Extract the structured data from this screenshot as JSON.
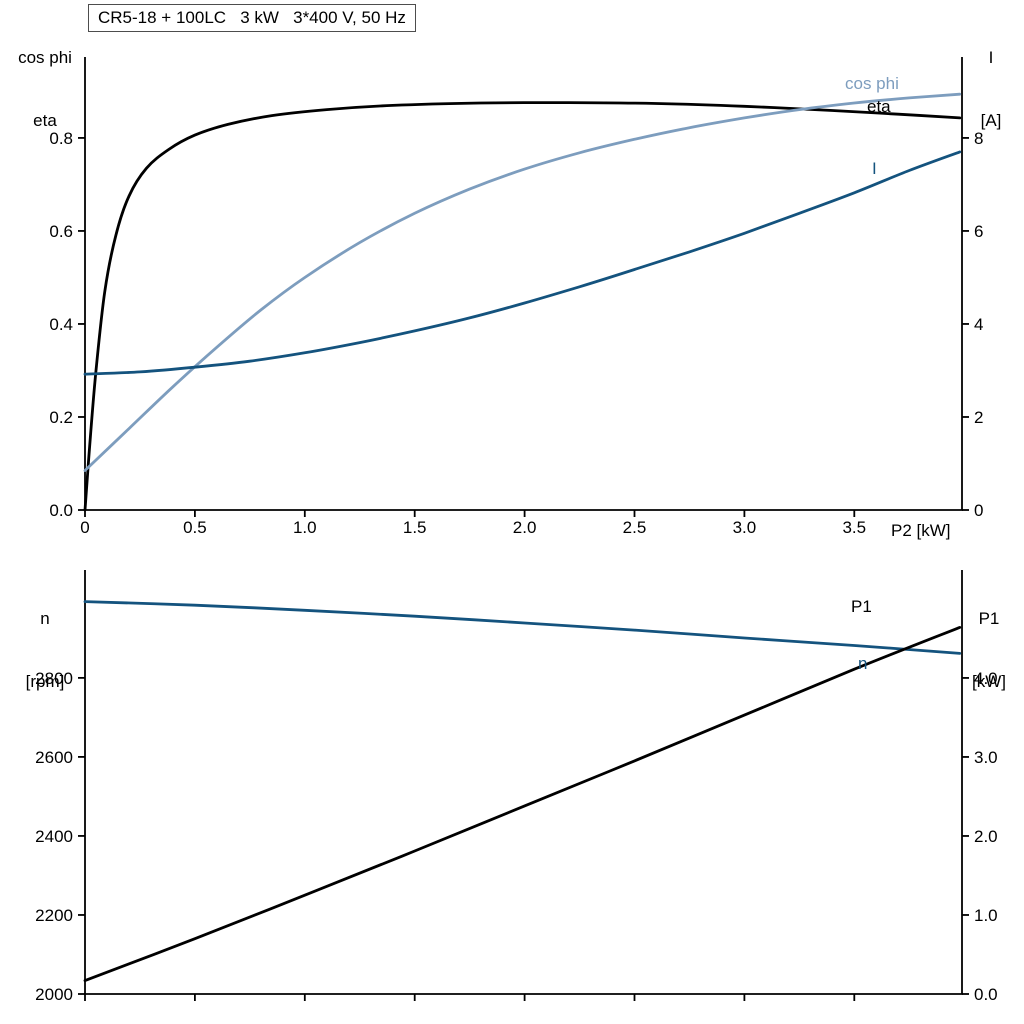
{
  "colors": {
    "black": "#000000",
    "light_blue": "#7d9dbe",
    "dark_blue": "#14537e",
    "background": "#ffffff"
  },
  "chart_data": [
    {
      "type": "line",
      "title": "CR5-18 + 100LC   3 kW   3*400 V, 50 Hz",
      "xlabel": "P2 [kW]",
      "xlim": [
        0,
        3.99
      ],
      "x_ticks": [
        0,
        0.5,
        1.0,
        1.5,
        2.0,
        2.5,
        3.0,
        3.5
      ],
      "x_tick_labels": [
        "0",
        "0.5",
        "1.0",
        "1.5",
        "2.0",
        "2.5",
        "3.0",
        "3.5"
      ],
      "grid": false,
      "left_axis": {
        "label_lines": [
          "cos phi",
          "eta"
        ],
        "lim": [
          0,
          0.974
        ],
        "ticks": [
          0.0,
          0.2,
          0.4,
          0.6,
          0.8
        ],
        "tick_labels": [
          "0.0",
          "0.2",
          "0.4",
          "0.6",
          "0.8"
        ]
      },
      "right_axis": {
        "label_lines": [
          "I",
          "[A]"
        ],
        "lim": [
          0,
          9.74
        ],
        "ticks": [
          0,
          2,
          4,
          6,
          8
        ],
        "tick_labels": [
          "0",
          "2",
          "4",
          "6",
          "8"
        ]
      },
      "series": [
        {
          "name": "eta",
          "label": "eta",
          "axis": "left",
          "color_key": "black",
          "x": [
            0,
            0.02,
            0.05,
            0.09,
            0.14,
            0.2,
            0.28,
            0.38,
            0.5,
            0.65,
            0.85,
            1.1,
            1.4,
            1.8,
            2.2,
            2.6,
            3.0,
            3.4,
            3.7,
            3.98
          ],
          "values": [
            0,
            0.13,
            0.3,
            0.47,
            0.59,
            0.675,
            0.735,
            0.775,
            0.806,
            0.829,
            0.848,
            0.861,
            0.87,
            0.875,
            0.876,
            0.874,
            0.868,
            0.859,
            0.851,
            0.843
          ]
        },
        {
          "name": "cos-phi",
          "label": "cos phi",
          "axis": "left",
          "color_key": "light_blue",
          "x": [
            0,
            0.2,
            0.4,
            0.6,
            0.8,
            1.0,
            1.25,
            1.5,
            1.75,
            2.0,
            2.25,
            2.5,
            2.75,
            3.0,
            3.25,
            3.5,
            3.75,
            3.98
          ],
          "values": [
            0.085,
            0.175,
            0.265,
            0.35,
            0.43,
            0.5,
            0.575,
            0.638,
            0.69,
            0.733,
            0.768,
            0.797,
            0.822,
            0.843,
            0.861,
            0.875,
            0.886,
            0.894
          ]
        },
        {
          "name": "current",
          "label": "I",
          "axis": "right",
          "color_key": "dark_blue",
          "x": [
            0,
            0.25,
            0.5,
            0.75,
            1.0,
            1.25,
            1.5,
            1.75,
            2.0,
            2.25,
            2.5,
            2.75,
            3.0,
            3.25,
            3.5,
            3.75,
            3.98
          ],
          "values": [
            2.92,
            2.97,
            3.07,
            3.2,
            3.38,
            3.6,
            3.85,
            4.13,
            4.45,
            4.8,
            5.17,
            5.55,
            5.95,
            6.38,
            6.82,
            7.3,
            7.7
          ]
        }
      ]
    },
    {
      "type": "line",
      "title": "",
      "xlabel": "",
      "xlim": [
        0,
        3.99
      ],
      "x_ticks": [
        0,
        0.5,
        1.0,
        1.5,
        2.0,
        2.5,
        3.0,
        3.5
      ],
      "x_tick_labels": [],
      "grid": false,
      "left_axis": {
        "label_lines": [
          "n",
          "[rpm]"
        ],
        "lim": [
          2000,
          3073
        ],
        "ticks": [
          2000,
          2200,
          2400,
          2600,
          2800
        ],
        "tick_labels": [
          "2000",
          "2200",
          "2400",
          "2600",
          "2800"
        ]
      },
      "right_axis": {
        "label_lines": [
          "P1",
          "[kW]"
        ],
        "lim": [
          0,
          5.366
        ],
        "ticks": [
          0.0,
          1.0,
          2.0,
          3.0,
          4.0
        ],
        "tick_labels": [
          "0.0",
          "1.0",
          "2.0",
          "3.0",
          "4.0"
        ]
      },
      "series": [
        {
          "name": "speed",
          "label": "n",
          "axis": "left",
          "color_key": "dark_blue",
          "x": [
            0,
            0.5,
            1.0,
            1.5,
            2.0,
            2.5,
            3.0,
            3.5,
            3.98
          ],
          "values": [
            2993,
            2984,
            2971,
            2956,
            2939,
            2921,
            2901,
            2882,
            2862
          ]
        },
        {
          "name": "p1-power",
          "label": "P1",
          "axis": "right",
          "color_key": "black",
          "x": [
            0,
            0.5,
            1.0,
            1.5,
            2.0,
            2.5,
            3.0,
            3.5,
            3.98
          ],
          "values": [
            0.17,
            0.7,
            1.25,
            1.81,
            2.38,
            2.95,
            3.53,
            4.11,
            4.64
          ]
        }
      ]
    }
  ]
}
